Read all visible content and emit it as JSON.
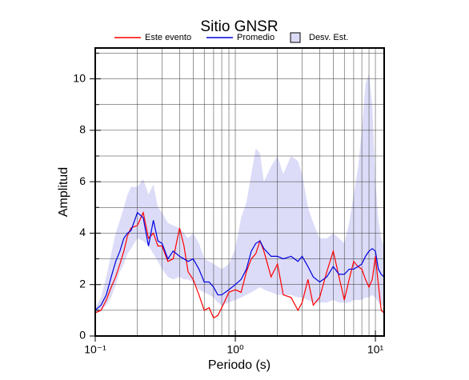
{
  "chart_data": {
    "type": "line",
    "title": "Sitio GNSR",
    "x_label": "Periodo (s)",
    "y_label": "Amplitud",
    "log_x": true,
    "grid": true,
    "xlim": [
      0.1,
      11.55
    ],
    "ylim": [
      0,
      11.2
    ],
    "xticks": [
      {
        "value": 0.1,
        "label": "10⁻¹"
      },
      {
        "value": 1,
        "label": "10⁰"
      },
      {
        "value": 10,
        "label": "10¹"
      }
    ],
    "yticks": [
      0,
      2,
      4,
      6,
      8,
      10
    ],
    "x_grid": [
      0.2,
      0.3,
      0.4,
      0.5,
      0.6,
      0.7,
      0.8,
      0.9,
      2,
      3,
      4,
      5,
      6,
      7,
      8,
      9
    ],
    "y_grid": [
      1,
      3,
      5,
      7,
      9,
      11
    ],
    "x": [
      0.1,
      0.11,
      0.12,
      0.13,
      0.14,
      0.15,
      0.16,
      0.17,
      0.18,
      0.2,
      0.22,
      0.24,
      0.26,
      0.28,
      0.3,
      0.33,
      0.36,
      0.4,
      0.43,
      0.46,
      0.5,
      0.55,
      0.6,
      0.65,
      0.7,
      0.75,
      0.8,
      0.9,
      1.0,
      1.1,
      1.2,
      1.3,
      1.4,
      1.5,
      1.6,
      1.8,
      2.0,
      2.2,
      2.5,
      2.8,
      3.0,
      3.3,
      3.6,
      4.0,
      4.5,
      5.0,
      5.5,
      6.0,
      6.5,
      7.0,
      7.5,
      8.0,
      8.5,
      9.0,
      9.5,
      10,
      10.5,
      11,
      11.5
    ],
    "series": [
      {
        "name": "Este evento",
        "color": "#ff0000",
        "values": [
          0.9,
          1.0,
          1.4,
          1.9,
          2.3,
          2.8,
          3.3,
          3.9,
          4.2,
          4.3,
          4.8,
          3.8,
          4.0,
          3.5,
          3.5,
          2.9,
          3.0,
          4.2,
          3.5,
          2.5,
          2.2,
          1.6,
          1.0,
          1.1,
          0.7,
          0.8,
          1.1,
          1.7,
          1.8,
          1.7,
          2.5,
          3.0,
          3.2,
          3.7,
          3.3,
          2.3,
          2.8,
          1.6,
          1.5,
          1.0,
          1.3,
          2.2,
          1.2,
          1.5,
          2.5,
          3.3,
          2.3,
          1.4,
          2.2,
          2.9,
          2.7,
          2.6,
          2.2,
          1.9,
          2.2,
          3.1,
          2.0,
          1.0,
          0.9
        ]
      },
      {
        "name": "Promedio",
        "color": "#0000e0",
        "values": [
          1.0,
          1.2,
          1.6,
          2.3,
          2.9,
          3.3,
          3.8,
          4.0,
          4.1,
          4.8,
          4.6,
          3.5,
          4.5,
          3.7,
          3.6,
          3.0,
          3.3,
          3.1,
          3.0,
          2.9,
          3.0,
          2.6,
          2.1,
          2.1,
          1.9,
          1.6,
          1.6,
          1.8,
          2.0,
          2.2,
          2.6,
          3.3,
          3.6,
          3.7,
          3.4,
          3.1,
          3.1,
          3.0,
          3.1,
          2.9,
          3.1,
          2.7,
          2.3,
          2.1,
          2.3,
          2.7,
          2.4,
          2.4,
          2.6,
          2.6,
          2.7,
          2.8,
          3.1,
          3.3,
          3.4,
          3.3,
          2.6,
          2.4,
          2.3
        ]
      },
      {
        "name": "Desv. Est.",
        "color": "#dcdcf8",
        "type": "band",
        "lower": [
          0.9,
          1.0,
          1.2,
          1.5,
          2.0,
          2.5,
          2.8,
          3.2,
          3.4,
          3.8,
          3.7,
          3.5,
          3.2,
          2.9,
          2.6,
          2.3,
          2.2,
          2.3,
          2.2,
          2.2,
          2.1,
          1.8,
          1.7,
          1.6,
          1.5,
          1.3,
          1.2,
          1.3,
          1.4,
          1.5,
          1.6,
          1.7,
          1.8,
          1.9,
          1.8,
          1.7,
          1.6,
          1.6,
          1.6,
          1.5,
          1.5,
          1.4,
          1.3,
          1.3,
          1.3,
          1.4,
          1.3,
          1.3,
          1.3,
          1.4,
          1.4,
          1.4,
          1.5,
          1.5,
          1.6,
          1.5,
          1.3,
          1.2,
          1.2
        ],
        "upper": [
          1.1,
          1.5,
          2.3,
          3.2,
          4.0,
          4.5,
          5.0,
          5.5,
          5.8,
          5.8,
          6.1,
          5.5,
          5.9,
          5.0,
          4.8,
          4.4,
          4.3,
          4.2,
          4.0,
          3.8,
          4.0,
          3.6,
          3.0,
          2.9,
          2.8,
          2.7,
          2.6,
          2.8,
          3.4,
          4.6,
          5.2,
          6.3,
          7.3,
          7.1,
          6.0,
          6.6,
          7.0,
          6.3,
          7.0,
          6.8,
          6.3,
          5.0,
          4.4,
          3.8,
          3.8,
          4.0,
          3.8,
          3.6,
          4.4,
          5.5,
          6.5,
          8.0,
          9.8,
          10.2,
          9.0,
          6.0,
          4.5,
          3.8,
          3.5
        ]
      }
    ]
  }
}
